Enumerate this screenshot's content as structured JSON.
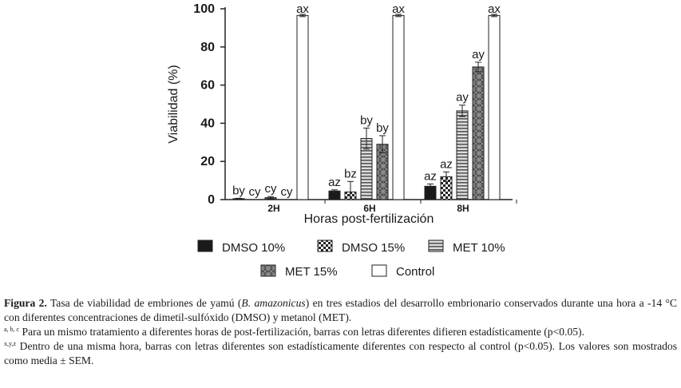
{
  "chart_data": {
    "type": "bar",
    "categories": [
      "2H",
      "6H",
      "8H"
    ],
    "xlabel": "Horas post-fertilización",
    "ylabel": "Viabilidad (%)",
    "ylim": [
      0,
      100
    ],
    "yticks": [
      0,
      20,
      40,
      60,
      80,
      100
    ],
    "grid": false,
    "legend_position": "bottom",
    "series": [
      {
        "name": "DMSO 10%",
        "pattern": "solid-black",
        "values": [
          0.5,
          4.5,
          7.0
        ],
        "errors": [
          0.2,
          0.6,
          1.2
        ],
        "labels": [
          "by",
          "az",
          "az"
        ]
      },
      {
        "name": "DMSO 15%",
        "pattern": "checker",
        "values": [
          0,
          4.0,
          12.0
        ],
        "errors": [
          0,
          5.5,
          2.5
        ],
        "labels": [
          "cy",
          "bz",
          "az"
        ]
      },
      {
        "name": "MET 10%",
        "pattern": "horizontal-stripes",
        "values": [
          1.0,
          32.0,
          46.5
        ],
        "errors": [
          0.6,
          5.5,
          3.0
        ],
        "labels": [
          "cy",
          "by",
          "ay"
        ]
      },
      {
        "name": "MET 15%",
        "pattern": "diamond-grey",
        "values": [
          0,
          29.0,
          69.5
        ],
        "errors": [
          0,
          4.5,
          2.5
        ],
        "labels": [
          "cy",
          "by",
          "ay"
        ]
      },
      {
        "name": "Control",
        "pattern": "white",
        "values": [
          96.5,
          96.5,
          96.5
        ],
        "errors": [
          0.6,
          0.6,
          0.6
        ],
        "labels": [
          "ax",
          "ax",
          "ax"
        ]
      }
    ]
  },
  "caption": {
    "line1_label": "Figura 2.",
    "line1_text": " Tasa de viabilidad de embriones de yamú (",
    "line1_species": "B. amazonicus",
    "line1_rest": ") en tres estadios del desarrollo embrionario conservados durante una hora a -14 °C con diferentes concentraciones de dimetil-sulfóxido (DMSO) y metanol (MET).",
    "note1_sup": "a, b, c",
    "note1_text": " Para un mismo tratamiento a diferentes horas de post-fertilización, barras con letras diferentes difieren estadísticamente (p<0.05).",
    "note2_sup": "x,y,z",
    "note2_text": " Dentro de una misma hora, barras con letras diferentes son estadísticamente diferentes con respecto al control (p<0.05). Los valores son mostrados como media ± SEM."
  }
}
